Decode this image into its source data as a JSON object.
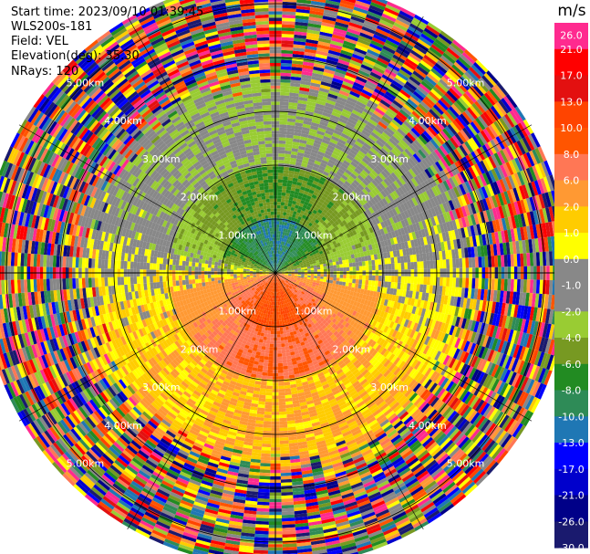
{
  "header": {
    "start_time": "Start time: 2023/09/10 01:39:45",
    "instrument": "WLS200s-181",
    "field": "Field: VEL",
    "elevation": "Elevation(deg): 35.30",
    "nrays": "NRays: 120"
  },
  "chart_data": {
    "type": "heatmap",
    "projection": "polar-ppi",
    "n_rays": 120,
    "range_rings_km": [
      1,
      2,
      3,
      4,
      5
    ],
    "range_ring_labels": [
      "1.00km",
      "2.00km",
      "3.00km",
      "4.00km",
      "5.00km"
    ],
    "azimuth_lines_deg": [
      0,
      30,
      60,
      90,
      120,
      150,
      180,
      210,
      240,
      270,
      300,
      330
    ],
    "max_range_km": 5.5,
    "colorbar": {
      "unit": "m/s",
      "tick_labels": [
        "26.0",
        "21.0",
        "17.0",
        "13.0",
        "10.0",
        "8.0",
        "6.0",
        "2.0",
        "1.0",
        "0.0",
        "-1.0",
        "-2.0",
        "-4.0",
        "-6.0",
        "-8.0",
        "-10.0",
        "-13.0",
        "-17.0",
        "-21.0",
        "-26.0",
        "-30.0"
      ],
      "colors": [
        "#ff2a8f",
        "#ff0000",
        "#e31010",
        "#ff4400",
        "#ff5500",
        "#ff7755",
        "#ff9933",
        "#ffcc00",
        "#ffff00",
        "#888888",
        "#888888",
        "#99cc33",
        "#779922",
        "#228b22",
        "#2e8b57",
        "#1f77b4",
        "#0000ff",
        "#0000cc",
        "#000088",
        "#1a1a6e"
      ]
    },
    "velocity_structure": {
      "inner_north_km": [
        0,
        1.0
      ],
      "inner_north_value": -10.0,
      "inner_south_value": 10.0,
      "mid_north_value": -6.0,
      "mid_south_value": 8.0,
      "outer_north_value": -2.0,
      "outer_south_value": 2.0,
      "noise_start_km": 3.3
    }
  }
}
